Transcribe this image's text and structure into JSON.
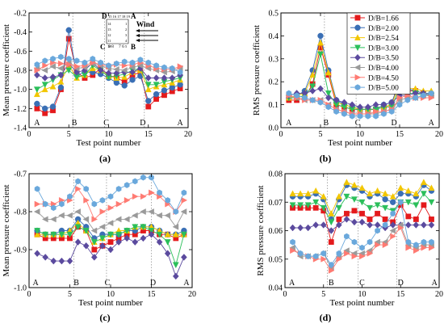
{
  "series_style": [
    {
      "color": "#e41a1c",
      "marker": "square"
    },
    {
      "color": "#3a6fb5",
      "marker": "circle"
    },
    {
      "color": "#f2c600",
      "marker": "triangle-up"
    },
    {
      "color": "#2bbf5a",
      "marker": "triangle-down"
    },
    {
      "color": "#5b4a9e",
      "marker": "diamond"
    },
    {
      "color": "#9a9a9a",
      "marker": "triangle-left"
    },
    {
      "color": "#ff7a72",
      "marker": "triangle-right"
    },
    {
      "color": "#6aa8dc",
      "marker": "hexagon"
    }
  ],
  "inset": {
    "letters": {
      "D": "D",
      "A": "A",
      "C": "C",
      "B": "B"
    },
    "top_numbers": "15 16 17 18 19",
    "left_numbers": "14 13 12 11 10",
    "right_numbers": "1 2 3 4 5",
    "bottom_left": "9 8",
    "bottom_right": "7 6",
    "wind_label": "Wind"
  },
  "chart_data": [
    {
      "type": "line",
      "panel_label": "(a)",
      "xlabel": "Test point number",
      "ylabel": "Mean pressure coefficient",
      "xlim": [
        0,
        20
      ],
      "ylim": [
        -1.4,
        -0.2
      ],
      "xticks": [
        0,
        5,
        10,
        15,
        20
      ],
      "yticks": [
        -1.4,
        -1.2,
        -1.0,
        -0.8,
        -0.6,
        -0.4,
        -0.2
      ],
      "ytick_labels": [
        "-1.4",
        "-1.2",
        "-1.0",
        "-0.8",
        "-0.6",
        "-0.4",
        "-0.2"
      ],
      "xtick_labels": [
        "0",
        "5",
        "10",
        "15",
        "20"
      ],
      "region_labels": [
        {
          "text": "A",
          "x": 1
        },
        {
          "text": "B",
          "x": 5.7
        },
        {
          "text": "C",
          "x": 9.7
        },
        {
          "text": "D",
          "x": 14.3
        },
        {
          "text": "A",
          "x": 19
        }
      ],
      "region_dividers": [
        5.5,
        9.5,
        14.5
      ],
      "x": [
        1,
        2,
        3,
        4,
        5,
        6,
        7,
        8,
        9,
        10,
        11,
        12,
        13,
        14,
        15,
        16,
        17,
        18,
        19
      ],
      "series": [
        {
          "values": [
            -1.2,
            -1.25,
            -1.22,
            -1.0,
            -0.47,
            -0.82,
            -0.88,
            -0.85,
            -0.78,
            -0.85,
            -0.88,
            -0.92,
            -0.85,
            -0.82,
            -1.18,
            -1.1,
            -1.06,
            -1.02,
            -0.99
          ]
        },
        {
          "values": [
            -1.15,
            -1.2,
            -1.18,
            -0.98,
            -0.38,
            -0.85,
            -0.82,
            -0.82,
            -0.84,
            -0.88,
            -0.93,
            -0.96,
            -0.9,
            -0.86,
            -1.12,
            -1.05,
            -1.01,
            -0.98,
            -0.95
          ]
        },
        {
          "values": [
            -1.05,
            -1.0,
            -0.97,
            -0.92,
            -0.75,
            -0.88,
            -0.85,
            -0.78,
            -0.8,
            -0.86,
            -0.88,
            -0.87,
            -0.82,
            -0.8,
            -1.0,
            -0.97,
            -0.95,
            -0.93,
            -0.9
          ]
        },
        {
          "values": [
            -1.0,
            -0.95,
            -0.9,
            -0.85,
            -0.8,
            -0.87,
            -0.85,
            -0.75,
            -0.8,
            -0.87,
            -0.86,
            -0.84,
            -0.8,
            -0.78,
            -0.95,
            -0.95,
            -0.92,
            -0.9,
            -0.88
          ]
        },
        {
          "values": [
            -0.85,
            -0.88,
            -0.87,
            -0.85,
            -0.73,
            -0.82,
            -0.8,
            -0.72,
            -0.8,
            -0.83,
            -0.83,
            -0.82,
            -0.82,
            -0.78,
            -0.88,
            -0.88,
            -0.88,
            -0.88,
            -0.85
          ]
        },
        {
          "values": [
            -0.78,
            -0.8,
            -0.76,
            -0.78,
            -0.72,
            -0.78,
            -0.77,
            -0.73,
            -0.75,
            -0.78,
            -0.79,
            -0.8,
            -0.77,
            -0.75,
            -0.78,
            -0.8,
            -0.82,
            -0.81,
            -0.78
          ]
        },
        {
          "values": [
            -0.8,
            -0.75,
            -0.72,
            -0.73,
            -0.74,
            -0.76,
            -0.75,
            -0.72,
            -0.74,
            -0.76,
            -0.74,
            -0.75,
            -0.74,
            -0.72,
            -0.75,
            -0.78,
            -0.79,
            -0.79,
            -0.76
          ]
        },
        {
          "values": [
            -0.74,
            -0.7,
            -0.68,
            -0.66,
            -0.68,
            -0.7,
            -0.72,
            -0.68,
            -0.72,
            -0.75,
            -0.73,
            -0.71,
            -0.72,
            -0.69,
            -0.72,
            -0.75,
            -0.77,
            -0.78,
            -0.82
          ]
        }
      ]
    },
    {
      "type": "line",
      "panel_label": "(b)",
      "xlabel": "Test point number",
      "ylabel": "RMS pressure coefficient",
      "xlim": [
        0,
        20
      ],
      "ylim": [
        0,
        0.5
      ],
      "xticks": [
        0,
        5,
        10,
        15,
        20
      ],
      "yticks": [
        0.0,
        0.1,
        0.2,
        0.3,
        0.4,
        0.5
      ],
      "ytick_labels": [
        "0.0",
        "0.1",
        "0.2",
        "0.3",
        "0.4",
        "0.5"
      ],
      "xtick_labels": [
        "0",
        "5",
        "10",
        "15",
        "20"
      ],
      "region_labels": [
        {
          "text": "A",
          "x": 1
        },
        {
          "text": "B",
          "x": 5.7
        },
        {
          "text": "C",
          "x": 9.7
        },
        {
          "text": "D",
          "x": 14.3
        },
        {
          "text": "A",
          "x": 19
        }
      ],
      "region_dividers": [
        5.5,
        9.5,
        14.5
      ],
      "legend_position": "top-right",
      "x": [
        1,
        2,
        3,
        4,
        5,
        6,
        7,
        8,
        9,
        10,
        11,
        12,
        13,
        14,
        15,
        16,
        17,
        18,
        19
      ],
      "series": [
        {
          "name": "D/B=1.66",
          "values": [
            0.12,
            0.12,
            0.13,
            0.19,
            0.35,
            0.23,
            0.1,
            0.09,
            0.08,
            0.08,
            0.08,
            0.08,
            0.09,
            0.1,
            0.22,
            0.16,
            0.16,
            0.15,
            0.14
          ]
        },
        {
          "name": "D/B=2.00",
          "values": [
            0.13,
            0.14,
            0.16,
            0.25,
            0.4,
            0.25,
            0.12,
            0.1,
            0.09,
            0.08,
            0.08,
            0.08,
            0.1,
            0.11,
            0.2,
            0.17,
            0.16,
            0.15,
            0.15
          ]
        },
        {
          "name": "D/B=2.54",
          "values": [
            0.13,
            0.14,
            0.15,
            0.23,
            0.37,
            0.24,
            0.11,
            0.1,
            0.09,
            0.08,
            0.08,
            0.08,
            0.09,
            0.1,
            0.19,
            0.17,
            0.17,
            0.16,
            0.16
          ]
        },
        {
          "name": "D/B=3.00",
          "values": [
            0.13,
            0.13,
            0.14,
            0.18,
            0.32,
            0.15,
            0.1,
            0.09,
            0.08,
            0.08,
            0.08,
            0.08,
            0.09,
            0.09,
            0.17,
            0.15,
            0.15,
            0.14,
            0.14
          ]
        },
        {
          "name": "D/B=3.50",
          "values": [
            0.14,
            0.15,
            0.15,
            0.16,
            0.17,
            0.13,
            0.12,
            0.11,
            0.1,
            0.09,
            0.09,
            0.1,
            0.1,
            0.11,
            0.14,
            0.14,
            0.15,
            0.15,
            0.14
          ]
        },
        {
          "name": "D/B=4.00",
          "values": [
            0.14,
            0.13,
            0.12,
            0.12,
            0.12,
            0.1,
            0.08,
            0.07,
            0.06,
            0.06,
            0.06,
            0.06,
            0.07,
            0.08,
            0.12,
            0.13,
            0.13,
            0.14,
            0.14
          ]
        },
        {
          "name": "D/B=4.50",
          "values": [
            0.14,
            0.13,
            0.12,
            0.12,
            0.12,
            0.1,
            0.08,
            0.07,
            0.06,
            0.06,
            0.06,
            0.07,
            0.07,
            0.08,
            0.13,
            0.14,
            0.13,
            0.13,
            0.13
          ]
        },
        {
          "name": "D/B=5.00",
          "values": [
            0.15,
            0.14,
            0.13,
            0.12,
            0.11,
            0.09,
            0.07,
            0.06,
            0.05,
            0.05,
            0.05,
            0.05,
            0.06,
            0.07,
            0.1,
            0.12,
            0.13,
            0.14,
            0.15
          ]
        }
      ]
    },
    {
      "type": "line",
      "panel_label": "(c)",
      "xlabel": "Test point number",
      "ylabel": "Mean pressure coefficient",
      "xlim": [
        0,
        20
      ],
      "ylim": [
        -1.0,
        -0.7
      ],
      "xticks": [
        0,
        5,
        10,
        15,
        20
      ],
      "yticks": [
        -1.0,
        -0.9,
        -0.8,
        -0.7
      ],
      "ytick_labels": [
        "-1.0",
        "-0.9",
        "-0.8",
        "-0.7"
      ],
      "xtick_labels": [
        "0",
        "5",
        "10",
        "15",
        "20"
      ],
      "region_labels": [
        {
          "text": "A",
          "x": 0.8
        },
        {
          "text": "B",
          "x": 5.8
        },
        {
          "text": "C",
          "x": 9.6
        },
        {
          "text": "D",
          "x": 15.2
        },
        {
          "text": "A",
          "x": 19.3
        }
      ],
      "region_dividers": [
        5.5,
        9.5,
        15
      ],
      "x": [
        1,
        2,
        3,
        4,
        5,
        6,
        7,
        8,
        9,
        10,
        11,
        12,
        13,
        14,
        15,
        16,
        17,
        18,
        19
      ],
      "series": [
        {
          "values": [
            -0.86,
            -0.87,
            -0.87,
            -0.87,
            -0.87,
            -0.84,
            -0.85,
            -0.9,
            -0.89,
            -0.88,
            -0.87,
            -0.86,
            -0.86,
            -0.85,
            -0.85,
            -0.86,
            -0.86,
            -0.87,
            -0.86
          ]
        },
        {
          "values": [
            -0.85,
            -0.86,
            -0.86,
            -0.85,
            -0.85,
            -0.82,
            -0.84,
            -0.87,
            -0.86,
            -0.86,
            -0.86,
            -0.85,
            -0.85,
            -0.84,
            -0.84,
            -0.85,
            -0.86,
            -0.86,
            -0.85
          ]
        },
        {
          "values": [
            -0.86,
            -0.86,
            -0.86,
            -0.86,
            -0.85,
            -0.83,
            -0.85,
            -0.88,
            -0.87,
            -0.86,
            -0.85,
            -0.85,
            -0.84,
            -0.84,
            -0.84,
            -0.85,
            -0.86,
            -0.86,
            -0.86
          ]
        },
        {
          "values": [
            -0.85,
            -0.86,
            -0.86,
            -0.86,
            -0.86,
            -0.84,
            -0.85,
            -0.88,
            -0.87,
            -0.86,
            -0.86,
            -0.85,
            -0.84,
            -0.84,
            -0.85,
            -0.86,
            -0.88,
            -0.94,
            -0.86
          ]
        },
        {
          "values": [
            -0.91,
            -0.92,
            -0.93,
            -0.93,
            -0.93,
            -0.88,
            -0.89,
            -0.92,
            -0.89,
            -0.9,
            -0.88,
            -0.87,
            -0.88,
            -0.87,
            -0.86,
            -0.88,
            -0.91,
            -0.97,
            -0.92
          ]
        },
        {
          "values": [
            -0.8,
            -0.82,
            -0.82,
            -0.81,
            -0.81,
            -0.8,
            -0.82,
            -0.85,
            -0.84,
            -0.83,
            -0.82,
            -0.82,
            -0.81,
            -0.8,
            -0.8,
            -0.81,
            -0.81,
            -0.84,
            -0.8
          ]
        },
        {
          "values": [
            -0.78,
            -0.78,
            -0.78,
            -0.77,
            -0.77,
            -0.74,
            -0.77,
            -0.82,
            -0.8,
            -0.79,
            -0.78,
            -0.77,
            -0.76,
            -0.76,
            -0.75,
            -0.76,
            -0.78,
            -0.8,
            -0.77
          ]
        },
        {
          "values": [
            -0.74,
            -0.78,
            -0.79,
            -0.78,
            -0.76,
            -0.72,
            -0.74,
            -0.78,
            -0.77,
            -0.76,
            -0.74,
            -0.73,
            -0.72,
            -0.71,
            -0.71,
            -0.75,
            -0.77,
            -0.8,
            -0.75
          ]
        }
      ]
    },
    {
      "type": "line",
      "panel_label": "(d)",
      "xlabel": "Test point number",
      "ylabel": "RMS pressure coefficient",
      "xlim": [
        0,
        20
      ],
      "ylim": [
        0.04,
        0.08
      ],
      "xticks": [
        0,
        5,
        10,
        15,
        20
      ],
      "yticks": [
        0.04,
        0.05,
        0.06,
        0.07,
        0.08
      ],
      "ytick_labels": [
        "0.04",
        "0.05",
        "0.06",
        "0.07",
        "0.08"
      ],
      "xtick_labels": [
        "0",
        "5",
        "10",
        "15",
        "20"
      ],
      "region_labels": [
        {
          "text": "A",
          "x": 0.9
        },
        {
          "text": "B",
          "x": 6.0
        },
        {
          "text": "C",
          "x": 10.0
        },
        {
          "text": "D",
          "x": 15.0
        },
        {
          "text": "A",
          "x": 19.4
        }
      ],
      "region_dividers": [
        5.5,
        9.5,
        14.5
      ],
      "x": [
        1,
        2,
        3,
        4,
        5,
        6,
        7,
        8,
        9,
        10,
        11,
        12,
        13,
        14,
        15,
        16,
        17,
        18,
        19
      ],
      "series": [
        {
          "values": [
            0.068,
            0.068,
            0.068,
            0.068,
            0.067,
            0.056,
            0.064,
            0.066,
            0.067,
            0.066,
            0.064,
            0.066,
            0.064,
            0.063,
            0.069,
            0.065,
            0.064,
            0.069,
            0.064
          ]
        },
        {
          "values": [
            0.072,
            0.072,
            0.072,
            0.073,
            0.071,
            0.064,
            0.071,
            0.076,
            0.075,
            0.074,
            0.072,
            0.073,
            0.071,
            0.07,
            0.073,
            0.073,
            0.072,
            0.076,
            0.074
          ]
        },
        {
          "values": [
            0.073,
            0.073,
            0.073,
            0.074,
            0.072,
            0.066,
            0.072,
            0.077,
            0.076,
            0.075,
            0.073,
            0.074,
            0.073,
            0.072,
            0.075,
            0.074,
            0.073,
            0.077,
            0.075
          ]
        },
        {
          "values": [
            0.069,
            0.069,
            0.069,
            0.07,
            0.068,
            0.063,
            0.068,
            0.072,
            0.071,
            0.07,
            0.068,
            0.069,
            0.068,
            0.067,
            0.07,
            0.07,
            0.069,
            0.073,
            0.07
          ]
        },
        {
          "values": [
            0.061,
            0.061,
            0.061,
            0.062,
            0.062,
            0.06,
            0.062,
            0.064,
            0.063,
            0.063,
            0.062,
            0.062,
            0.061,
            0.062,
            0.062,
            0.062,
            0.062,
            0.062,
            0.062
          ]
        },
        {
          "values": [
            0.054,
            0.051,
            0.051,
            0.051,
            0.052,
            0.047,
            0.051,
            0.053,
            0.052,
            0.052,
            0.053,
            0.056,
            0.056,
            0.06,
            0.062,
            0.055,
            0.054,
            0.055,
            0.055
          ]
        },
        {
          "values": [
            0.053,
            0.052,
            0.051,
            0.05,
            0.05,
            0.046,
            0.05,
            0.052,
            0.051,
            0.051,
            0.052,
            0.055,
            0.055,
            0.058,
            0.061,
            0.054,
            0.053,
            0.054,
            0.054
          ]
        },
        {
          "values": [
            0.056,
            0.052,
            0.051,
            0.051,
            0.052,
            0.048,
            0.052,
            0.058,
            0.056,
            0.054,
            0.056,
            0.06,
            0.062,
            0.066,
            0.07,
            0.056,
            0.055,
            0.056,
            0.056
          ]
        }
      ]
    }
  ]
}
